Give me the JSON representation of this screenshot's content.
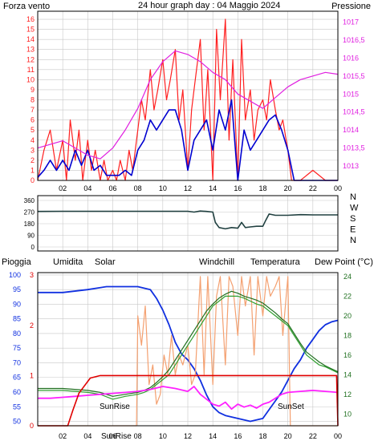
{
  "colors": {
    "wind_speed": "#ff2020",
    "wind_avg": "#0000d0",
    "pressure": "#e020e0",
    "direction": "#204040",
    "humidity": "#1030e0",
    "solar": "#f4a070",
    "windchill": "#30a030",
    "temperature": "#207020",
    "dewpoint": "#ff20ff",
    "rain": "#e00000",
    "grid": "#c8c8c8",
    "title": "#e0d000"
  },
  "chart_data": [
    {
      "type": "line",
      "title": "24 hour graph day : 04 Maggio 2024",
      "left_label": "Forza vento",
      "right_label": "Pressione",
      "x_ticks": [
        "02",
        "04",
        "06",
        "08",
        "10",
        "12",
        "14",
        "16",
        "18",
        "20",
        "22",
        "00"
      ],
      "y_left_ticks": [
        "0",
        "1",
        "2",
        "3",
        "4",
        "5",
        "6",
        "7",
        "8",
        "9",
        "10",
        "11",
        "12",
        "13",
        "14",
        "15",
        "16"
      ],
      "y_right_ticks": [
        "1013",
        "1013,5",
        "1014",
        "1014,5",
        "1015",
        "1015,5",
        "1016",
        "1016,5",
        "1017"
      ],
      "ylim_left": [
        0,
        16.8
      ],
      "ylim_right": [
        1012.6,
        1017.3
      ],
      "series": [
        {
          "key": "wind",
          "color_key": "wind_speed",
          "axis": "left",
          "x": [
            0,
            0.5,
            1,
            1.5,
            2,
            2.3,
            2.6,
            3,
            3.3,
            3.6,
            4,
            4.3,
            4.6,
            5,
            5.3,
            5.6,
            6,
            6.3,
            6.6,
            7,
            7.3,
            7.6,
            8,
            8.3,
            8.6,
            9,
            9.3,
            9.6,
            10,
            10.3,
            10.6,
            11,
            11.3,
            11.6,
            12,
            12.3,
            12.6,
            13,
            13.3,
            13.6,
            14,
            14.3,
            14.6,
            15,
            15.3,
            15.6,
            16,
            16.3,
            16.6,
            17,
            17.3,
            17.6,
            18,
            18.3,
            18.6,
            19,
            19.3,
            19.6,
            20,
            20.3,
            21,
            22,
            23,
            24
          ],
          "y": [
            0,
            3,
            5,
            1,
            4,
            0,
            6,
            2,
            5,
            0,
            4,
            1,
            3,
            0,
            2,
            0,
            1,
            0,
            2,
            0,
            3,
            1,
            5,
            8,
            6,
            11,
            7,
            9,
            12,
            8,
            10,
            13,
            6,
            9,
            1,
            7,
            10,
            14,
            5,
            11,
            0,
            15,
            8,
            16,
            4,
            12,
            0,
            14,
            6,
            9,
            4,
            7,
            8,
            6,
            10,
            7,
            5,
            6,
            3,
            0,
            0,
            1,
            0,
            0
          ]
        },
        {
          "key": "wind_avg",
          "color_key": "wind_avg",
          "axis": "left",
          "x": [
            0,
            0.5,
            1,
            1.5,
            2,
            2.5,
            3,
            3.5,
            4,
            4.5,
            5,
            5.5,
            6,
            6.5,
            7,
            7.5,
            8,
            8.5,
            9,
            9.5,
            10,
            10.5,
            11,
            11.5,
            12,
            12.5,
            13,
            13.5,
            14,
            14.5,
            15,
            15.5,
            16,
            16.5,
            17,
            17.5,
            18,
            18.5,
            19,
            19.5,
            20,
            20.5,
            21,
            22,
            23,
            24
          ],
          "y": [
            0.3,
            1,
            2,
            1,
            2,
            1,
            3,
            1.5,
            3,
            1,
            1.5,
            0.5,
            0.5,
            0.5,
            1,
            0.5,
            3,
            4,
            6,
            5,
            6,
            7,
            7,
            5,
            1,
            4,
            5,
            6,
            3,
            7,
            5,
            8,
            0,
            5,
            3,
            4,
            5,
            6,
            6.5,
            5,
            3,
            0,
            0,
            0,
            0,
            0
          ]
        },
        {
          "key": "pressure",
          "color_key": "pressure",
          "axis": "right",
          "x": [
            0,
            1,
            2,
            3,
            4,
            5,
            6,
            7,
            8,
            9,
            10,
            11,
            12,
            13,
            14,
            15,
            16,
            17,
            18,
            19,
            20,
            21,
            22,
            23,
            24
          ],
          "y": [
            1013.5,
            1013.6,
            1013.7,
            1013.5,
            1013.3,
            1013.2,
            1013.5,
            1014.0,
            1014.6,
            1015.4,
            1015.9,
            1016.2,
            1016.1,
            1015.9,
            1015.6,
            1015.4,
            1015.0,
            1014.8,
            1014.6,
            1014.9,
            1015.2,
            1015.4,
            1015.5,
            1015.6,
            1015.55
          ]
        }
      ]
    },
    {
      "type": "line",
      "ylim": [
        0,
        360
      ],
      "y_ticks": [
        "360",
        "270",
        "180",
        "90",
        "0"
      ],
      "compass_labels": [
        "N",
        "W",
        "S",
        "E",
        "N"
      ],
      "series": [
        {
          "key": "direction",
          "color_key": "direction",
          "x": [
            0,
            2,
            4,
            6,
            8,
            10,
            12,
            12.5,
            13,
            13.5,
            14,
            14.2,
            14.5,
            15,
            15.5,
            16,
            16.3,
            16.6,
            17,
            17.5,
            18,
            18.2,
            18.5,
            19,
            20,
            21,
            22,
            24
          ],
          "y": [
            275,
            276,
            276,
            276,
            276,
            276,
            276,
            270,
            278,
            275,
            270,
            190,
            150,
            140,
            150,
            145,
            190,
            150,
            155,
            160,
            160,
            200,
            255,
            245,
            245,
            250,
            248,
            248
          ]
        }
      ]
    },
    {
      "type": "line",
      "labels": {
        "rain": "Pioggia",
        "humidity": "Umidita",
        "solar": "Solar",
        "windchill": "Windchill",
        "temperature": "Temperatura",
        "dewpoint": "Dew Point (°C)"
      },
      "annotations": [
        "SunRise",
        "SunSet"
      ],
      "x_ticks": [
        "02",
        "04",
        "06",
        "08",
        "10",
        "12",
        "14",
        "16",
        "18",
        "20",
        "22",
        "00"
      ],
      "y_humidity_ticks": [
        "50",
        "55",
        "60",
        "65",
        "70",
        "75",
        "80",
        "85",
        "90",
        "95",
        "100"
      ],
      "y_rain_ticks": [
        "0",
        "1",
        "2",
        "3"
      ],
      "y_temp_ticks": [
        "10",
        "12",
        "14",
        "16",
        "18",
        "20",
        "22",
        "24"
      ],
      "ylim_humidity": [
        48.5,
        100.8
      ],
      "ylim_temp": [
        8.8,
        24.4
      ],
      "ylim_rain": [
        0,
        3.05
      ],
      "series": [
        {
          "key": "humidity",
          "color_key": "humidity",
          "axis": "humidity",
          "x": [
            0,
            2,
            4,
            5.5,
            7,
            8,
            9,
            9.5,
            10,
            10.5,
            11,
            11.5,
            12,
            12.5,
            13,
            13.5,
            14,
            14.5,
            15,
            16,
            17,
            18,
            18.5,
            19,
            19.5,
            20,
            20.5,
            21,
            21.5,
            22,
            22.5,
            23,
            23.5,
            24
          ],
          "y": [
            94,
            94,
            95,
            96,
            96,
            96,
            95,
            92,
            88,
            83,
            77,
            73,
            71,
            68,
            64,
            59,
            55,
            53,
            52,
            51,
            50,
            51,
            54,
            57,
            60,
            64,
            68,
            71,
            75,
            78,
            81,
            83,
            84,
            84.5
          ]
        },
        {
          "key": "solar",
          "color_key": "solar",
          "axis": "temp",
          "x": [
            0,
            7.9,
            8,
            8.3,
            8.6,
            8.9,
            9.2,
            9.5,
            9.8,
            10.1,
            10.4,
            10.7,
            11,
            11.3,
            11.6,
            12,
            12.3,
            12.6,
            13,
            13.3,
            13.6,
            14,
            14.3,
            14.6,
            15,
            15.3,
            15.6,
            16,
            16.3,
            16.6,
            17,
            17.3,
            17.6,
            18,
            18.3,
            18.6,
            19,
            19.3,
            19.6,
            20,
            20.2,
            24
          ],
          "y": [
            8.8,
            8.8,
            20,
            17,
            21,
            13,
            15,
            11,
            12,
            16,
            14,
            18,
            14,
            16,
            15,
            17,
            13,
            14,
            24,
            14,
            24,
            13,
            22,
            24,
            15,
            24,
            23,
            18,
            24,
            21,
            24,
            16,
            24,
            20,
            24,
            22,
            23,
            24,
            18,
            24,
            8.8,
            8.8
          ]
        },
        {
          "key": "windchill",
          "color_key": "windchill",
          "axis": "temp",
          "x": [
            0,
            2,
            4,
            5,
            6,
            7,
            8,
            8.5,
            9,
            9.5,
            10,
            10.5,
            11,
            11.5,
            12,
            12.5,
            13,
            13.5,
            14,
            14.5,
            15,
            15.5,
            16,
            16.5,
            17,
            17.5,
            18,
            18.5,
            19,
            19.5,
            20,
            20.5,
            21,
            21.5,
            22,
            22.5,
            23,
            23.5,
            24
          ],
          "y": [
            12.4,
            12.4,
            12.2,
            12,
            11.5,
            11.8,
            12,
            12.2,
            12.5,
            13,
            13.5,
            14,
            15,
            16,
            17,
            18,
            19,
            20,
            21,
            21.5,
            22,
            22,
            22,
            21.8,
            21.5,
            21.2,
            21,
            20.5,
            20,
            19.5,
            19,
            18,
            17,
            16,
            15.5,
            15,
            14.8,
            14.5,
            14.2
          ]
        },
        {
          "key": "temperature",
          "color_key": "temperature",
          "axis": "temp",
          "x": [
            0,
            2,
            4,
            5,
            6,
            7,
            8,
            8.5,
            9,
            9.5,
            10,
            10.5,
            11,
            11.5,
            12,
            12.5,
            13,
            13.5,
            14,
            14.5,
            15,
            15.5,
            16,
            16.5,
            17,
            17.5,
            18,
            18.5,
            19,
            19.5,
            20,
            20.5,
            21,
            21.5,
            22,
            22.5,
            23,
            23.5,
            24
          ],
          "y": [
            12.6,
            12.6,
            12.4,
            12.2,
            11.8,
            12,
            12.2,
            12.4,
            12.7,
            13.2,
            13.8,
            14.5,
            15.5,
            16.5,
            17.5,
            18.5,
            19.5,
            20.5,
            21.2,
            21.8,
            22.2,
            22.5,
            22.3,
            22,
            21.8,
            21.6,
            21.3,
            20.8,
            20.3,
            19.7,
            19.2,
            18.2,
            17.2,
            16.3,
            15.8,
            15.3,
            14.9,
            14.6,
            14.3
          ]
        },
        {
          "key": "dewpoint",
          "color_key": "dewpoint",
          "axis": "temp",
          "x": [
            0,
            1,
            2,
            3,
            4,
            5,
            6,
            7,
            8,
            9,
            10,
            11,
            12,
            12.5,
            13,
            13.5,
            14,
            14.5,
            15,
            15.5,
            16,
            16.5,
            17,
            17.5,
            18,
            18.5,
            19,
            19.5,
            20,
            21,
            22,
            23,
            24
          ],
          "y": [
            11.6,
            11.6,
            11.7,
            11.8,
            11.9,
            12,
            12.1,
            12.2,
            12.3,
            12.5,
            12.8,
            12.6,
            12.3,
            12.8,
            12,
            11.5,
            11,
            10.8,
            11.2,
            10.5,
            11,
            10.7,
            10.9,
            10.6,
            11,
            11.2,
            11.6,
            12,
            12.2,
            12.3,
            12.4,
            12.3,
            12.2
          ]
        },
        {
          "key": "rain",
          "color_key": "rain",
          "axis": "rain",
          "x": [
            0,
            2.4,
            2.8,
            3.3,
            4.2,
            5,
            6,
            8,
            10,
            12,
            14,
            16,
            18,
            20,
            22,
            23.9,
            24
          ],
          "y": [
            0,
            0,
            0.3,
            0.65,
            0.95,
            1,
            1,
            1,
            1,
            1,
            1,
            1,
            1,
            1,
            1,
            1,
            0
          ]
        }
      ]
    }
  ]
}
